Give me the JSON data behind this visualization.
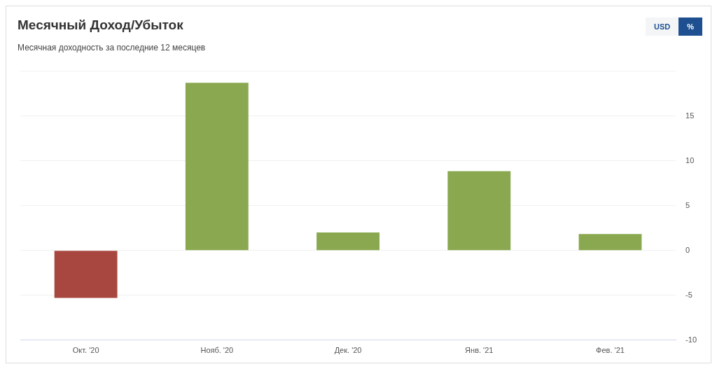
{
  "chart_data": {
    "type": "bar",
    "title": "Месячный Доход/Убыток",
    "subtitle": "Месячная доходность за последние 12 месяцев",
    "annotations": [
      "USD",
      "%"
    ],
    "categories": [
      "Окт. '20",
      "Нояб. '20",
      "Дек. '20",
      "Янв. '21",
      "Фев. '21"
    ],
    "values": [
      -5.3,
      18.7,
      2.0,
      8.85,
      1.84
    ],
    "colors": [
      "#a8473f",
      "#8aa84f",
      "#8aa84f",
      "#8aa84f",
      "#8aa84f"
    ],
    "ylim": [
      -10,
      20
    ],
    "yticks": [
      -10,
      -5,
      0,
      5,
      10,
      15,
      {
        "value": 20,
        "label": null
      }
    ],
    "grid": "y",
    "legend": false
  }
}
